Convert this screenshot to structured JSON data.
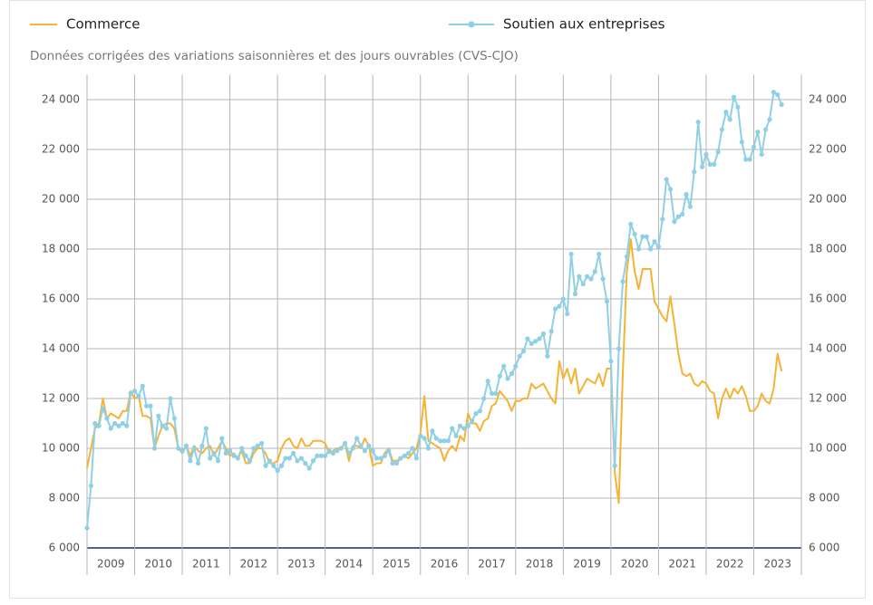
{
  "chart_data": {
    "type": "line",
    "subtitle": "Données corrigées des variations saisonnières et des jours ouvrables (CVS-CJO)",
    "xlim": [
      2009,
      2024
    ],
    "xticks": [
      2009,
      2010,
      2011,
      2012,
      2013,
      2014,
      2015,
      2016,
      2017,
      2018,
      2019,
      2020,
      2021,
      2022,
      2023
    ],
    "ylim": [
      6000,
      25000
    ],
    "yticks": [
      {
        "value": 6000,
        "label": "6 000"
      },
      {
        "value": 8000,
        "label": "8 000"
      },
      {
        "value": 10000,
        "label": "10 000"
      },
      {
        "value": 12000,
        "label": "12 000"
      },
      {
        "value": 14000,
        "label": "14 000"
      },
      {
        "value": 16000,
        "label": "16 000"
      },
      {
        "value": 18000,
        "label": "18 000"
      },
      {
        "value": 20000,
        "label": "20 000"
      },
      {
        "value": 22000,
        "label": "22 000"
      },
      {
        "value": 24000,
        "label": "24 000"
      }
    ],
    "grid": true,
    "series": [
      {
        "name": "Commerce",
        "color": "#f5b335",
        "markers": false,
        "values": [
          9200,
          10000,
          10800,
          11000,
          12000,
          11200,
          11400,
          11300,
          11200,
          11500,
          11500,
          12300,
          12000,
          12100,
          11300,
          11300,
          11200,
          10000,
          10500,
          10900,
          11000,
          11000,
          10800,
          10000,
          9800,
          10100,
          9700,
          10100,
          9900,
          9800,
          10000,
          10100,
          9700,
          10000,
          10300,
          10000,
          9700,
          9800,
          9600,
          9900,
          9400,
          9400,
          9800,
          10000,
          10000,
          9800,
          9400,
          9400,
          9500,
          10000,
          10300,
          10400,
          10100,
          10000,
          10400,
          10100,
          10100,
          10300,
          10300,
          10300,
          10200,
          9800,
          9900,
          10000,
          10000,
          10200,
          9500,
          10100,
          10100,
          10000,
          10400,
          10100,
          9300,
          9400,
          9400,
          9800,
          10000,
          9500,
          9500,
          9600,
          9700,
          9600,
          9800,
          10000,
          10600,
          12100,
          10300,
          10200,
          10100,
          10000,
          9500,
          9900,
          10100,
          9900,
          10500,
          10300,
          11400,
          11000,
          11000,
          10700,
          11100,
          11200,
          11700,
          11800,
          12300,
          12100,
          11900,
          11500,
          11900,
          11900,
          12000,
          12000,
          12600,
          12400,
          12500,
          12600,
          12300,
          12000,
          11800,
          13500,
          12800,
          13200,
          12600,
          13200,
          12200,
          12500,
          12800,
          12700,
          12600,
          13000,
          12500,
          13200,
          13200,
          9000,
          7800,
          13000,
          17100,
          18400,
          17100,
          16400,
          17200,
          17200,
          17200,
          15900,
          15600,
          15300,
          15100,
          16100,
          15000,
          13800,
          13000,
          12900,
          13000,
          12600,
          12500,
          12700,
          12600,
          12300,
          12200,
          11200,
          12000,
          12400,
          12000,
          12400,
          12200,
          12500,
          12100,
          11500,
          11500,
          11700,
          12200,
          11900,
          11800,
          12400,
          13800,
          13100
        ]
      },
      {
        "name": "Soutien aux entreprises",
        "color": "#8fd0e6",
        "markers": true,
        "values": [
          6800,
          8500,
          11000,
          10900,
          11600,
          11200,
          10800,
          11000,
          10900,
          11000,
          10900,
          12200,
          12300,
          12100,
          12500,
          11700,
          11700,
          10000,
          11300,
          10900,
          10800,
          12000,
          11200,
          10000,
          9900,
          10100,
          9500,
          10000,
          9400,
          10100,
          10800,
          9600,
          9800,
          9500,
          10400,
          9800,
          9900,
          9700,
          9600,
          10000,
          9700,
          9500,
          10000,
          10100,
          10200,
          9300,
          9500,
          9300,
          9100,
          9300,
          9600,
          9600,
          9800,
          9500,
          9600,
          9400,
          9200,
          9500,
          9700,
          9700,
          9700,
          9900,
          9800,
          9900,
          10000,
          10200,
          9800,
          10000,
          10400,
          10100,
          9900,
          10100,
          9900,
          9600,
          9600,
          9700,
          9900,
          9400,
          9400,
          9600,
          9700,
          9800,
          10000,
          9600,
          10500,
          10400,
          10000,
          10700,
          10400,
          10300,
          10300,
          10300,
          10800,
          10500,
          10900,
          10800,
          10900,
          11100,
          11400,
          11500,
          12000,
          12700,
          12200,
          12200,
          12900,
          13300,
          12800,
          13000,
          13300,
          13700,
          13900,
          14400,
          14200,
          14300,
          14400,
          14600,
          13700,
          14700,
          15600,
          15700,
          16000,
          15400,
          17800,
          16200,
          16900,
          16600,
          16900,
          16800,
          17100,
          17800,
          16800,
          15900,
          13500,
          9300,
          14000,
          16700,
          17700,
          19000,
          18600,
          18000,
          18500,
          18500,
          18000,
          18300,
          18100,
          19200,
          20800,
          20400,
          19100,
          19300,
          19400,
          20200,
          19700,
          21100,
          23100,
          21300,
          21800,
          21400,
          21400,
          21900,
          22800,
          23500,
          23200,
          24100,
          23700,
          22300,
          21600,
          21600,
          22100,
          22700,
          21800,
          22800,
          23200,
          24300,
          24200,
          23800
        ]
      }
    ]
  }
}
